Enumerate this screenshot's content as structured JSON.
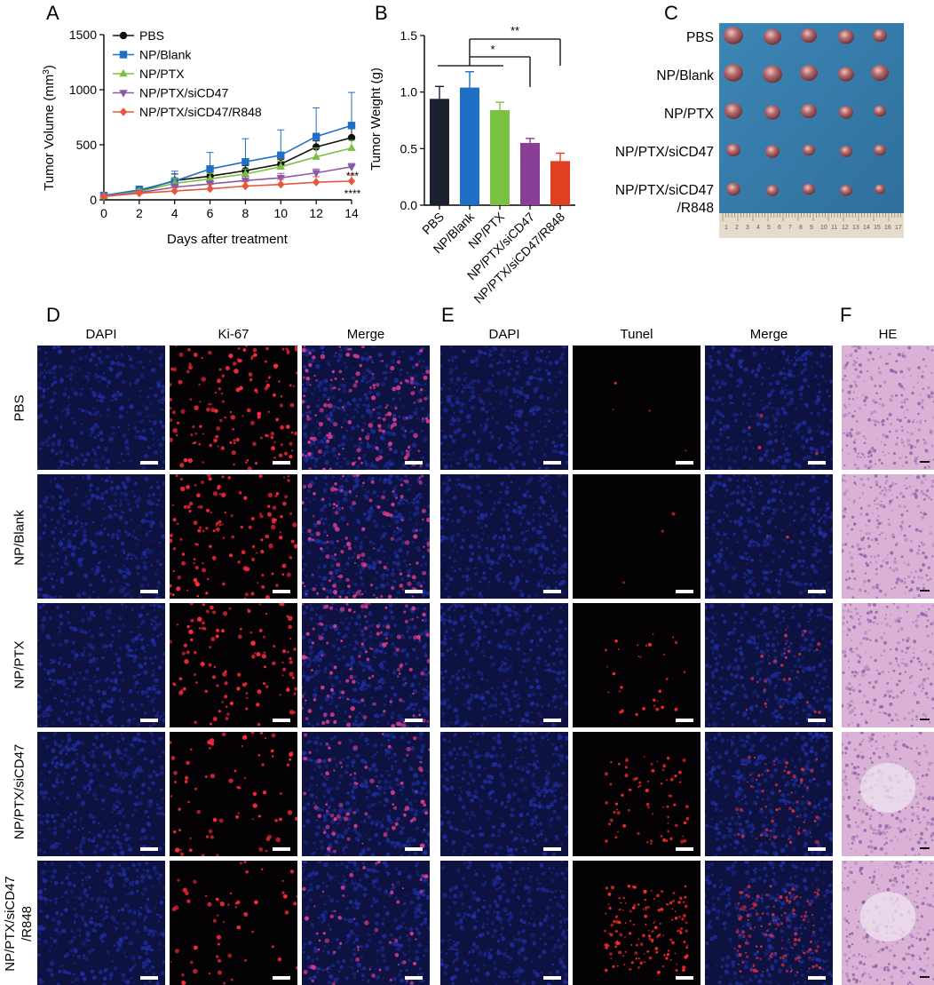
{
  "panels": {
    "A": "A",
    "B": "B",
    "C": "C",
    "D": "D",
    "E": "E",
    "F": "F"
  },
  "chart_data": [
    {
      "type": "line",
      "panel": "A",
      "xlabel": "Days after treatment",
      "ylabel": "Tumor Volume (mm",
      "ylabel_sup": "3",
      "ylabel_close": ")",
      "x": [
        0,
        2,
        4,
        6,
        8,
        10,
        12,
        14
      ],
      "xlim": [
        0,
        14
      ],
      "ylim": [
        0,
        1500
      ],
      "xticks": [
        0,
        2,
        4,
        6,
        8,
        10,
        12,
        14
      ],
      "yticks": [
        0,
        500,
        1000,
        1500
      ],
      "legend_position": "top-left",
      "series": [
        {
          "name": "PBS",
          "color": "#111111",
          "marker": "circle",
          "values": [
            35,
            80,
            175,
            215,
            265,
            325,
            480,
            565
          ],
          "err": [
            10,
            25,
            60,
            40,
            45,
            40,
            55,
            80
          ]
        },
        {
          "name": "NP/Blank",
          "color": "#1f6fc5",
          "marker": "square",
          "values": [
            40,
            90,
            170,
            280,
            345,
            405,
            575,
            675
          ],
          "err": [
            10,
            35,
            90,
            150,
            210,
            230,
            260,
            300
          ]
        },
        {
          "name": "NP/PTX",
          "color": "#7ac142",
          "marker": "triangle",
          "values": [
            35,
            75,
            150,
            190,
            235,
            300,
            390,
            470
          ],
          "err": [
            10,
            20,
            45,
            50,
            45,
            50,
            80,
            70
          ]
        },
        {
          "name": "NP/PTX/siCD47",
          "color": "#8a5aa8",
          "marker": "triangle-down",
          "values": [
            35,
            65,
            115,
            145,
            175,
            200,
            245,
            300
          ],
          "err": [
            10,
            15,
            30,
            30,
            35,
            40,
            35,
            30
          ]
        },
        {
          "name": "NP/PTX/siCD47/R848",
          "color": "#e8573a",
          "marker": "diamond",
          "values": [
            30,
            60,
            80,
            100,
            125,
            140,
            160,
            170
          ],
          "err": [
            10,
            15,
            30,
            40,
            40,
            45,
            50,
            55
          ]
        }
      ],
      "annotations": [
        "***",
        "****"
      ]
    },
    {
      "type": "bar",
      "panel": "B",
      "ylabel": "Tumor Weight (g)",
      "categories": [
        "PBS",
        "NP/Blank",
        "NP/PTX",
        "NP/PTX/siCD47",
        "NP/PTX/siCD47/R848"
      ],
      "values": [
        0.94,
        1.04,
        0.84,
        0.55,
        0.39
      ],
      "err": [
        0.11,
        0.14,
        0.07,
        0.04,
        0.07
      ],
      "colors": [
        "#1c2130",
        "#1f6fc5",
        "#7ac142",
        "#8a3f96",
        "#e0401f"
      ],
      "ylim": [
        0.0,
        1.5
      ],
      "yticks": [
        "0.0",
        "0.5",
        "1.0",
        "1.5"
      ],
      "significance": [
        "**",
        "*"
      ]
    }
  ],
  "plate": {
    "labels": [
      "PBS",
      "NP/Blank",
      "NP/PTX",
      "NP/PTX/siCD47",
      "NP/PTX/siCD47",
      "/R848"
    ]
  },
  "grid_D": {
    "columns": [
      "DAPI",
      "Ki-67",
      "Merge"
    ]
  },
  "grid_E": {
    "columns": [
      "DAPI",
      "Tunel",
      "Merge"
    ]
  },
  "grid_F": {
    "columns": [
      "HE"
    ]
  },
  "rows": [
    "PBS",
    "NP/Blank",
    "NP/PTX",
    "NP/PTX/siCD47",
    "NP/PTX/siCD47",
    "/R848"
  ]
}
